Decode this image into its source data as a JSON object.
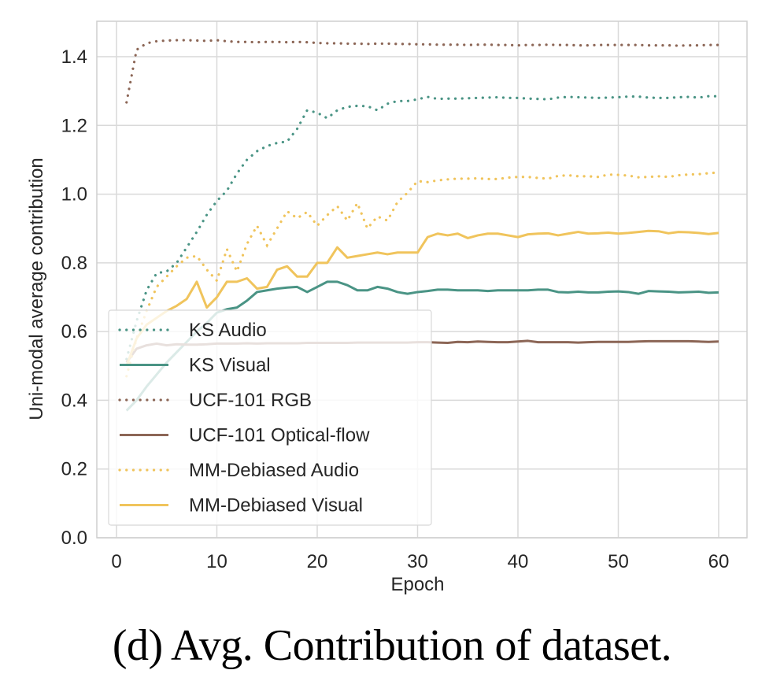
{
  "caption": "(d) Avg. Contribution of dataset.",
  "chart_data": {
    "type": "line",
    "title": "",
    "xlabel": "Epoch",
    "ylabel": "Uni-modal average contribution",
    "xlim": [
      -2,
      63
    ],
    "ylim": [
      0.0,
      1.48
    ],
    "xticks": [
      0,
      10,
      20,
      30,
      40,
      50,
      60
    ],
    "xtick_labels": [
      "0",
      "10",
      "20",
      "30",
      "40",
      "50",
      "60"
    ],
    "yticks": [
      0.0,
      0.2,
      0.4,
      0.6,
      0.8,
      1.0,
      1.2,
      1.4
    ],
    "ytick_labels": [
      "0.0",
      "0.2",
      "0.4",
      "0.6",
      "0.8",
      "1.0",
      "1.2",
      "1.4"
    ],
    "grid": true,
    "legend_position": "lower-left",
    "x": [
      1,
      2,
      3,
      4,
      5,
      6,
      7,
      8,
      9,
      10,
      11,
      12,
      13,
      14,
      15,
      16,
      17,
      18,
      19,
      20,
      21,
      22,
      23,
      24,
      25,
      26,
      27,
      28,
      29,
      30,
      31,
      32,
      33,
      34,
      35,
      36,
      37,
      38,
      39,
      40,
      41,
      42,
      43,
      44,
      45,
      46,
      47,
      48,
      49,
      50,
      51,
      52,
      53,
      54,
      55,
      56,
      57,
      58,
      59,
      60
    ],
    "series": [
      {
        "name": "KS Audio",
        "color": "#4a9485",
        "style": "dotted",
        "values": [
          0.52,
          0.63,
          0.72,
          0.77,
          0.775,
          0.8,
          0.845,
          0.89,
          0.94,
          0.98,
          1.01,
          1.06,
          1.1,
          1.125,
          1.14,
          1.149,
          1.153,
          1.19,
          1.244,
          1.237,
          1.221,
          1.244,
          1.254,
          1.257,
          1.256,
          1.244,
          1.263,
          1.271,
          1.271,
          1.276,
          1.283,
          1.277,
          1.278,
          1.278,
          1.279,
          1.28,
          1.281,
          1.282,
          1.28,
          1.28,
          1.278,
          1.277,
          1.276,
          1.281,
          1.283,
          1.282,
          1.281,
          1.28,
          1.281,
          1.282,
          1.284,
          1.284,
          1.281,
          1.28,
          1.28,
          1.282,
          1.283,
          1.281,
          1.285,
          1.285
        ]
      },
      {
        "name": "KS Visual",
        "color": "#4a9485",
        "style": "solid",
        "values": [
          0.37,
          0.4,
          0.44,
          0.475,
          0.51,
          0.54,
          0.57,
          0.6,
          0.625,
          0.655,
          0.665,
          0.67,
          0.69,
          0.715,
          0.72,
          0.725,
          0.728,
          0.73,
          0.715,
          0.73,
          0.745,
          0.745,
          0.735,
          0.72,
          0.72,
          0.73,
          0.725,
          0.715,
          0.71,
          0.715,
          0.718,
          0.722,
          0.722,
          0.72,
          0.72,
          0.72,
          0.718,
          0.72,
          0.72,
          0.72,
          0.72,
          0.722,
          0.722,
          0.715,
          0.714,
          0.716,
          0.714,
          0.714,
          0.716,
          0.717,
          0.715,
          0.71,
          0.718,
          0.717,
          0.716,
          0.714,
          0.715,
          0.716,
          0.713,
          0.714
        ]
      },
      {
        "name": "UCF-101 RGB",
        "color": "#8c6656",
        "style": "dotted",
        "values": [
          1.267,
          1.42,
          1.439,
          1.445,
          1.447,
          1.448,
          1.448,
          1.447,
          1.446,
          1.448,
          1.445,
          1.443,
          1.443,
          1.442,
          1.443,
          1.443,
          1.442,
          1.443,
          1.442,
          1.44,
          1.439,
          1.439,
          1.438,
          1.438,
          1.437,
          1.438,
          1.438,
          1.437,
          1.437,
          1.436,
          1.436,
          1.435,
          1.435,
          1.435,
          1.434,
          1.435,
          1.435,
          1.434,
          1.434,
          1.433,
          1.434,
          1.434,
          1.435,
          1.434,
          1.434,
          1.433,
          1.433,
          1.434,
          1.434,
          1.434,
          1.434,
          1.434,
          1.433,
          1.433,
          1.433,
          1.432,
          1.433,
          1.433,
          1.434,
          1.434
        ]
      },
      {
        "name": "UCF-101 Optical-flow",
        "color": "#8c6656",
        "style": "solid",
        "values": [
          0.51,
          0.55,
          0.56,
          0.565,
          0.56,
          0.563,
          0.562,
          0.562,
          0.563,
          0.565,
          0.565,
          0.565,
          0.566,
          0.565,
          0.566,
          0.566,
          0.566,
          0.566,
          0.567,
          0.567,
          0.567,
          0.567,
          0.567,
          0.568,
          0.568,
          0.568,
          0.568,
          0.568,
          0.568,
          0.569,
          0.569,
          0.568,
          0.567,
          0.57,
          0.569,
          0.571,
          0.57,
          0.569,
          0.569,
          0.571,
          0.573,
          0.569,
          0.569,
          0.569,
          0.569,
          0.568,
          0.569,
          0.57,
          0.57,
          0.57,
          0.57,
          0.571,
          0.572,
          0.572,
          0.572,
          0.572,
          0.572,
          0.571,
          0.57,
          0.571
        ]
      },
      {
        "name": "MM-Debiased Audio",
        "color": "#f0c45c",
        "style": "dotted",
        "values": [
          0.47,
          0.58,
          0.66,
          0.73,
          0.76,
          0.79,
          0.815,
          0.82,
          0.78,
          0.748,
          0.84,
          0.775,
          0.855,
          0.908,
          0.851,
          0.9,
          0.95,
          0.93,
          0.948,
          0.908,
          0.939,
          0.965,
          0.923,
          0.974,
          0.9,
          0.935,
          0.923,
          0.977,
          1.004,
          1.038,
          1.035,
          1.04,
          1.043,
          1.045,
          1.045,
          1.046,
          1.044,
          1.044,
          1.048,
          1.05,
          1.05,
          1.047,
          1.045,
          1.053,
          1.055,
          1.052,
          1.052,
          1.05,
          1.057,
          1.056,
          1.054,
          1.049,
          1.05,
          1.052,
          1.05,
          1.055,
          1.057,
          1.058,
          1.061,
          1.063
        ]
      },
      {
        "name": "MM-Debiased Visual",
        "color": "#f0c45c",
        "style": "solid",
        "values": [
          0.5,
          0.58,
          0.62,
          0.64,
          0.66,
          0.675,
          0.695,
          0.745,
          0.67,
          0.7,
          0.745,
          0.745,
          0.755,
          0.725,
          0.73,
          0.78,
          0.79,
          0.76,
          0.76,
          0.8,
          0.8,
          0.845,
          0.815,
          0.82,
          0.825,
          0.83,
          0.825,
          0.83,
          0.83,
          0.83,
          0.875,
          0.885,
          0.88,
          0.885,
          0.872,
          0.88,
          0.885,
          0.885,
          0.88,
          0.875,
          0.883,
          0.885,
          0.886,
          0.88,
          0.885,
          0.89,
          0.885,
          0.886,
          0.888,
          0.885,
          0.887,
          0.89,
          0.893,
          0.892,
          0.886,
          0.89,
          0.889,
          0.887,
          0.884,
          0.887
        ]
      }
    ]
  }
}
